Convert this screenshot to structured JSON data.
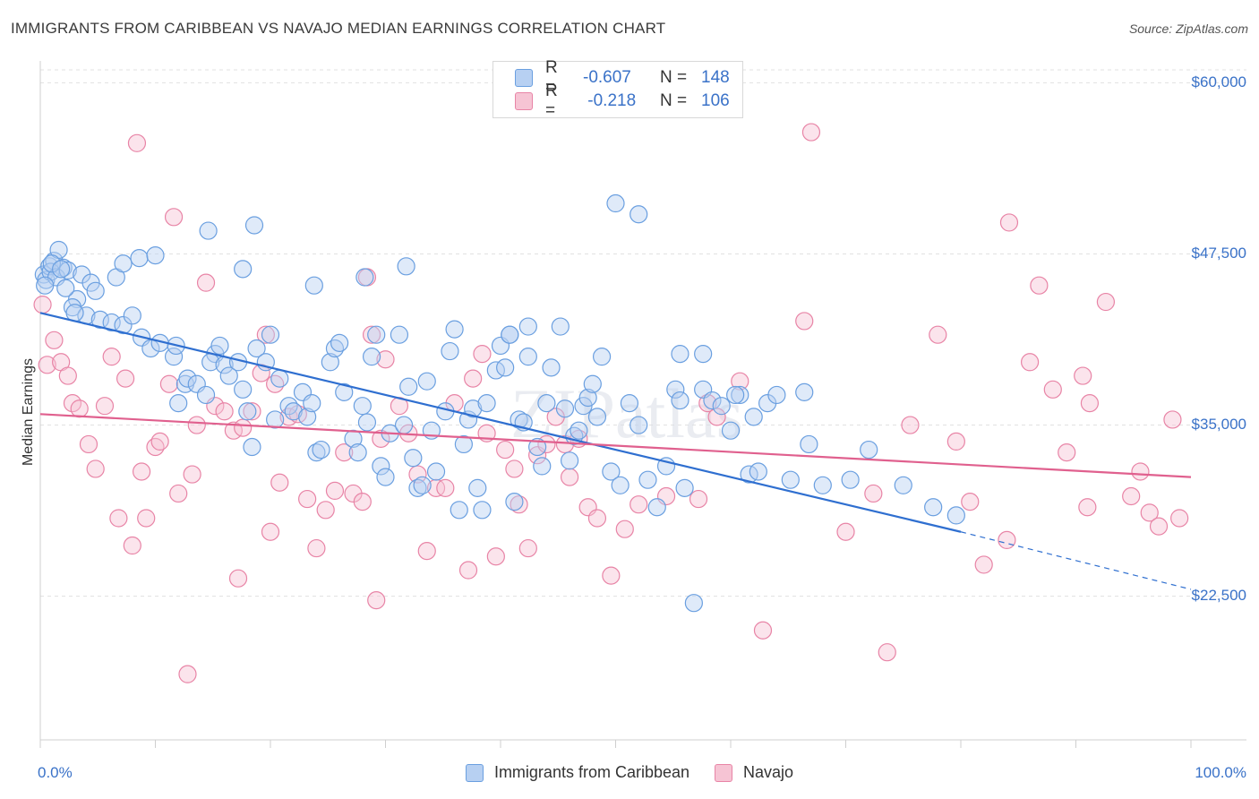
{
  "title": "IMMIGRANTS FROM CARIBBEAN VS NAVAJO MEDIAN EARNINGS CORRELATION CHART",
  "source": "Source: ZipAtlas.com",
  "watermark": "ZIPatlas",
  "colors": {
    "blue": "#6a9fe0",
    "blue_fill": "#b7d0f2",
    "blue_line": "#2f6fd0",
    "pink": "#e884a6",
    "pink_fill": "#f6c4d4",
    "pink_line": "#e0608e",
    "accent_text": "#3a72c8",
    "grid": "#e2e2e2"
  },
  "legend": {
    "rows": [
      {
        "r_label": "R =",
        "r_value": "-0.607",
        "n_label": "N =",
        "n_value": "148"
      },
      {
        "r_label": "R =",
        "r_value": " -0.218",
        "n_label": "N =",
        "n_value": "106"
      }
    ]
  },
  "bottom_legend": [
    "Immigrants from Caribbean",
    "Navajo"
  ],
  "chart_data": {
    "type": "scatter",
    "title": "IMMIGRANTS FROM CARIBBEAN VS NAVAJO MEDIAN EARNINGS CORRELATION CHART",
    "xlabel": "",
    "ylabel": "Median Earnings",
    "xlim": [
      0,
      100
    ],
    "ylim": [
      12000,
      62000
    ],
    "x_tick_labels": [
      "0.0%",
      "100.0%"
    ],
    "y_ticks": [
      22500,
      35000,
      47500,
      60000
    ],
    "y_tick_labels": [
      "$22,500",
      "$35,000",
      "$47,500",
      "$60,000"
    ],
    "grid": true,
    "legend_position": "top-center",
    "series": [
      {
        "name": "Immigrants from Caribbean",
        "R": -0.607,
        "N": 148,
        "trend": {
          "x0": 0,
          "y0": 43200,
          "x1": 80,
          "y1": 27200,
          "dashed_to_x": 100,
          "dashed_to_y": 23000
        },
        "points": [
          [
            0.3,
            46.0
          ],
          [
            0.5,
            45.6
          ],
          [
            0.8,
            46.6
          ],
          [
            1.2,
            47.0
          ],
          [
            1.6,
            47.8
          ],
          [
            2.0,
            46.5
          ],
          [
            0.9,
            46.2
          ],
          [
            1.4,
            45.8
          ],
          [
            2.4,
            46.3
          ],
          [
            3.6,
            46.0
          ],
          [
            4.4,
            45.4
          ],
          [
            3.2,
            44.2
          ],
          [
            2.8,
            43.6
          ],
          [
            4.0,
            43.0
          ],
          [
            4.8,
            44.8
          ],
          [
            6.6,
            45.8
          ],
          [
            8.6,
            47.2
          ],
          [
            10.0,
            47.4
          ],
          [
            3.0,
            43.2
          ],
          [
            5.2,
            42.7
          ],
          [
            6.2,
            42.5
          ],
          [
            7.2,
            42.3
          ],
          [
            8.0,
            43.0
          ],
          [
            8.8,
            41.4
          ],
          [
            9.6,
            40.6
          ],
          [
            10.4,
            41.0
          ],
          [
            11.6,
            40.0
          ],
          [
            12.0,
            36.6
          ],
          [
            12.6,
            38.0
          ],
          [
            11.8,
            40.8
          ],
          [
            12.8,
            38.4
          ],
          [
            13.6,
            38.0
          ],
          [
            14.4,
            37.2
          ],
          [
            15.2,
            40.2
          ],
          [
            15.6,
            40.8
          ],
          [
            14.8,
            39.6
          ],
          [
            16.0,
            39.4
          ],
          [
            16.4,
            38.6
          ],
          [
            17.2,
            39.6
          ],
          [
            17.6,
            37.6
          ],
          [
            18.0,
            36.0
          ],
          [
            18.4,
            33.4
          ],
          [
            18.8,
            40.6
          ],
          [
            19.6,
            39.6
          ],
          [
            20.0,
            41.6
          ],
          [
            20.4,
            35.4
          ],
          [
            20.8,
            38.4
          ],
          [
            21.6,
            36.4
          ],
          [
            22.0,
            36.0
          ],
          [
            22.8,
            37.4
          ],
          [
            23.2,
            35.6
          ],
          [
            23.6,
            36.6
          ],
          [
            24.0,
            33.0
          ],
          [
            24.4,
            33.2
          ],
          [
            25.2,
            39.6
          ],
          [
            25.6,
            40.6
          ],
          [
            26.0,
            41.0
          ],
          [
            26.4,
            37.4
          ],
          [
            27.2,
            34.0
          ],
          [
            27.6,
            33.0
          ],
          [
            28.0,
            36.4
          ],
          [
            28.4,
            35.2
          ],
          [
            28.8,
            40.0
          ],
          [
            29.2,
            41.6
          ],
          [
            29.6,
            32.0
          ],
          [
            30.0,
            31.2
          ],
          [
            30.4,
            34.4
          ],
          [
            31.2,
            41.6
          ],
          [
            31.6,
            35.0
          ],
          [
            32.0,
            37.8
          ],
          [
            32.4,
            32.6
          ],
          [
            32.8,
            30.4
          ],
          [
            33.2,
            30.6
          ],
          [
            33.6,
            38.2
          ],
          [
            34.0,
            34.6
          ],
          [
            34.4,
            31.6
          ],
          [
            35.2,
            36.0
          ],
          [
            35.6,
            40.4
          ],
          [
            36.0,
            42.0
          ],
          [
            36.4,
            28.8
          ],
          [
            36.8,
            33.6
          ],
          [
            37.2,
            35.4
          ],
          [
            37.6,
            36.2
          ],
          [
            38.0,
            30.4
          ],
          [
            38.4,
            28.8
          ],
          [
            38.8,
            36.6
          ],
          [
            39.6,
            39.0
          ],
          [
            40.0,
            40.8
          ],
          [
            40.4,
            39.2
          ],
          [
            40.8,
            41.6
          ],
          [
            41.2,
            29.4
          ],
          [
            41.6,
            35.4
          ],
          [
            42.0,
            35.2
          ],
          [
            42.4,
            40.0
          ],
          [
            43.2,
            33.4
          ],
          [
            43.6,
            32.0
          ],
          [
            44.0,
            36.6
          ],
          [
            44.4,
            39.2
          ],
          [
            45.2,
            42.2
          ],
          [
            45.6,
            36.2
          ],
          [
            46.0,
            32.4
          ],
          [
            46.4,
            34.2
          ],
          [
            46.8,
            34.6
          ],
          [
            47.2,
            36.4
          ],
          [
            47.6,
            37.0
          ],
          [
            48.0,
            38.0
          ],
          [
            48.4,
            35.6
          ],
          [
            48.8,
            40.0
          ],
          [
            49.6,
            31.6
          ],
          [
            50.4,
            30.6
          ],
          [
            51.2,
            36.6
          ],
          [
            52.0,
            35.0
          ],
          [
            52.8,
            31.0
          ],
          [
            53.6,
            29.0
          ],
          [
            54.4,
            32.0
          ],
          [
            55.2,
            37.6
          ],
          [
            55.6,
            36.8
          ],
          [
            56.0,
            30.4
          ],
          [
            56.8,
            22.0
          ],
          [
            57.6,
            37.6
          ],
          [
            58.4,
            36.8
          ],
          [
            59.2,
            36.4
          ],
          [
            60.0,
            34.6
          ],
          [
            60.8,
            37.2
          ],
          [
            61.6,
            31.4
          ],
          [
            62.4,
            31.6
          ],
          [
            63.2,
            36.6
          ],
          [
            64.0,
            37.2
          ],
          [
            65.2,
            31.0
          ],
          [
            66.8,
            33.6
          ],
          [
            68.0,
            30.6
          ],
          [
            70.4,
            31.0
          ],
          [
            72.0,
            33.2
          ],
          [
            75.0,
            30.6
          ],
          [
            77.6,
            29.0
          ],
          [
            79.6,
            28.4
          ],
          [
            50.0,
            51.2
          ],
          [
            52.0,
            50.4
          ],
          [
            18.6,
            49.6
          ],
          [
            23.8,
            45.2
          ],
          [
            17.6,
            46.4
          ],
          [
            7.2,
            46.8
          ],
          [
            14.6,
            49.2
          ],
          [
            28.2,
            45.8
          ],
          [
            31.8,
            46.6
          ],
          [
            42.4,
            42.2
          ],
          [
            40.8,
            41.6
          ],
          [
            55.6,
            40.2
          ],
          [
            57.6,
            40.2
          ],
          [
            60.4,
            37.2
          ],
          [
            62.0,
            35.6
          ],
          [
            66.4,
            37.4
          ],
          [
            0.4,
            45.2
          ],
          [
            1.0,
            46.8
          ],
          [
            1.8,
            46.4
          ],
          [
            2.2,
            45.0
          ]
        ]
      },
      {
        "name": "Navajo",
        "R": -0.218,
        "N": 106,
        "trend": {
          "x0": 0,
          "y0": 35800,
          "x1": 100,
          "y1": 31200
        },
        "points": [
          [
            0.2,
            43.8
          ],
          [
            0.6,
            39.4
          ],
          [
            1.2,
            41.2
          ],
          [
            1.8,
            39.6
          ],
          [
            2.4,
            38.6
          ],
          [
            2.8,
            36.6
          ],
          [
            3.4,
            36.2
          ],
          [
            4.2,
            33.6
          ],
          [
            4.8,
            31.8
          ],
          [
            5.6,
            36.4
          ],
          [
            6.2,
            40.0
          ],
          [
            6.8,
            28.2
          ],
          [
            7.4,
            38.4
          ],
          [
            8.0,
            26.2
          ],
          [
            8.4,
            55.6
          ],
          [
            8.8,
            31.6
          ],
          [
            9.2,
            28.2
          ],
          [
            10.0,
            33.4
          ],
          [
            10.4,
            33.8
          ],
          [
            11.2,
            38.0
          ],
          [
            11.6,
            50.2
          ],
          [
            12.0,
            30.0
          ],
          [
            12.8,
            16.8
          ],
          [
            13.2,
            31.4
          ],
          [
            13.6,
            35.0
          ],
          [
            14.4,
            45.4
          ],
          [
            15.2,
            36.4
          ],
          [
            16.0,
            36.0
          ],
          [
            16.8,
            34.6
          ],
          [
            17.2,
            23.8
          ],
          [
            17.6,
            34.8
          ],
          [
            18.4,
            36.0
          ],
          [
            19.2,
            38.8
          ],
          [
            19.6,
            41.6
          ],
          [
            20.0,
            27.2
          ],
          [
            20.4,
            38.0
          ],
          [
            20.8,
            30.8
          ],
          [
            21.6,
            35.6
          ],
          [
            22.4,
            35.8
          ],
          [
            23.2,
            29.6
          ],
          [
            24.0,
            26.0
          ],
          [
            24.8,
            28.8
          ],
          [
            25.6,
            30.2
          ],
          [
            26.4,
            33.0
          ],
          [
            27.2,
            30.0
          ],
          [
            28.0,
            29.4
          ],
          [
            28.4,
            45.8
          ],
          [
            28.8,
            41.6
          ],
          [
            29.2,
            22.2
          ],
          [
            29.6,
            34.0
          ],
          [
            30.0,
            39.8
          ],
          [
            31.2,
            36.4
          ],
          [
            32.0,
            34.4
          ],
          [
            32.8,
            31.4
          ],
          [
            33.6,
            25.8
          ],
          [
            34.4,
            30.4
          ],
          [
            35.2,
            30.4
          ],
          [
            36.0,
            36.6
          ],
          [
            37.2,
            24.4
          ],
          [
            37.6,
            38.4
          ],
          [
            38.4,
            40.2
          ],
          [
            38.8,
            34.4
          ],
          [
            39.6,
            25.4
          ],
          [
            40.4,
            33.2
          ],
          [
            41.2,
            31.8
          ],
          [
            41.6,
            29.2
          ],
          [
            42.4,
            26.0
          ],
          [
            43.2,
            32.8
          ],
          [
            44.0,
            33.6
          ],
          [
            44.8,
            35.6
          ],
          [
            45.6,
            33.6
          ],
          [
            46.0,
            31.2
          ],
          [
            46.8,
            34.0
          ],
          [
            47.6,
            29.0
          ],
          [
            48.4,
            28.2
          ],
          [
            49.6,
            24.0
          ],
          [
            50.8,
            27.4
          ],
          [
            52.0,
            29.2
          ],
          [
            54.4,
            29.8
          ],
          [
            57.2,
            29.6
          ],
          [
            58.0,
            36.6
          ],
          [
            58.8,
            35.6
          ],
          [
            60.8,
            38.2
          ],
          [
            62.8,
            20.0
          ],
          [
            66.4,
            42.6
          ],
          [
            67.0,
            56.4
          ],
          [
            70.0,
            27.2
          ],
          [
            73.6,
            18.4
          ],
          [
            75.6,
            35.0
          ],
          [
            78.0,
            41.6
          ],
          [
            79.6,
            33.8
          ],
          [
            80.8,
            29.4
          ],
          [
            82.0,
            24.8
          ],
          [
            84.0,
            26.6
          ],
          [
            86.0,
            39.6
          ],
          [
            88.0,
            37.6
          ],
          [
            89.2,
            33.0
          ],
          [
            90.6,
            38.6
          ],
          [
            91.2,
            36.6
          ],
          [
            92.6,
            44.0
          ],
          [
            94.8,
            29.8
          ],
          [
            95.6,
            31.6
          ],
          [
            96.4,
            28.6
          ],
          [
            97.2,
            27.6
          ],
          [
            98.4,
            35.4
          ],
          [
            99.0,
            28.2
          ],
          [
            84.2,
            49.8
          ],
          [
            86.8,
            45.2
          ],
          [
            91.0,
            29.0
          ],
          [
            72.4,
            30.0
          ]
        ]
      }
    ]
  }
}
